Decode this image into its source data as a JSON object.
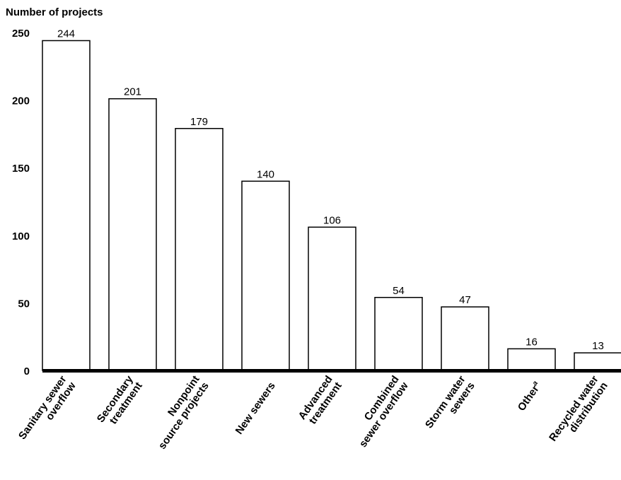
{
  "chart_data": {
    "type": "bar",
    "ylabel": "Number of projects",
    "ylim": [
      0,
      250
    ],
    "yticks": [
      "0",
      "50",
      "100",
      "150",
      "200",
      "250"
    ],
    "grid": false,
    "categories": [
      [
        "Sanitary sewer",
        "overflow"
      ],
      [
        "Secondary",
        "treatment"
      ],
      [
        "Nonpoint",
        "source projects"
      ],
      [
        "New sewers"
      ],
      [
        "Advanced",
        "treatment"
      ],
      [
        "Combined",
        "sewer overflow"
      ],
      [
        "Storm water",
        "sewers"
      ],
      [
        "Other"
      ],
      [
        "Recycled water",
        "distribution"
      ]
    ],
    "category_superscripts": [
      "",
      "",
      "",
      "",
      "",
      "",
      "",
      "a",
      ""
    ],
    "values": [
      244,
      201,
      179,
      140,
      106,
      54,
      47,
      16,
      13
    ],
    "data_labels": [
      "244",
      "201",
      "179",
      "140",
      "106",
      "54",
      "47",
      "16",
      "13"
    ],
    "bar_color": "#ffffff",
    "bar_edge_color": "#000000"
  }
}
